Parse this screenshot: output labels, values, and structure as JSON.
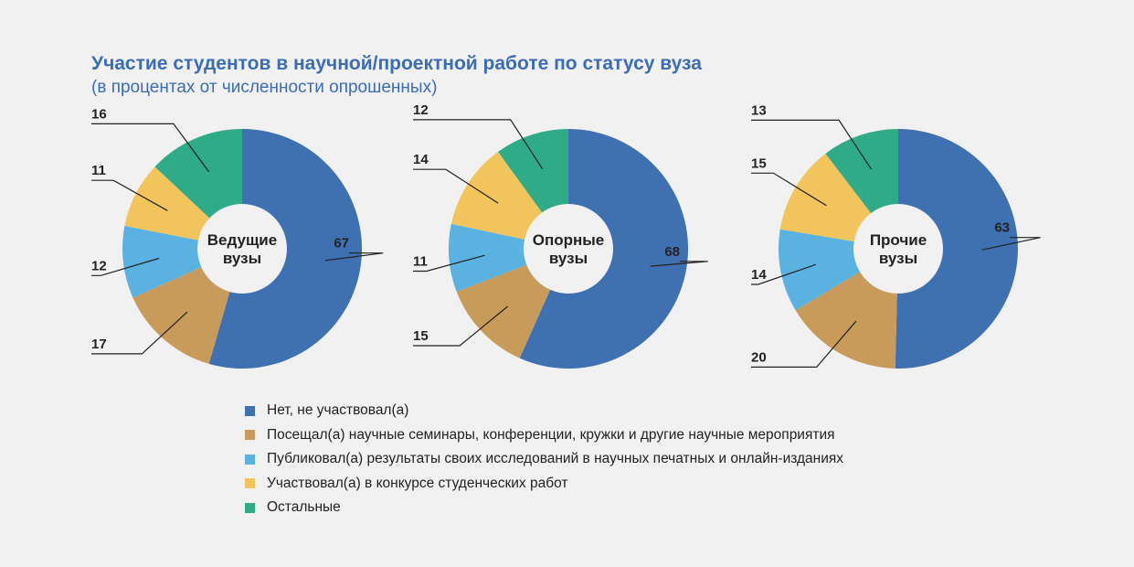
{
  "title": "Участие студентов в научной/проектной работе по статусу вуза",
  "subtitle": "(в процентах от численности опрошенных)",
  "chart_data": {
    "type": "pie",
    "categories": [
      "Нет, не участвовал(а)",
      "Посещал(а) научные семинары, конференции, кружки и другие научные мероприятия",
      "Публиковал(а) результаты своих исследований в научных печатных и онлайн-изданиях",
      "Участвовал(а) в конкурсе студенческих работ",
      "Остальные"
    ],
    "colors": [
      "#3f70b2",
      "#c89b5a",
      "#59b2df",
      "#f2c45c",
      "#30ab87"
    ],
    "charts": [
      {
        "title": "Ведущие вузы",
        "values": [
          67,
          17,
          12,
          11,
          16
        ]
      },
      {
        "title": "Опорные вузы",
        "values": [
          68,
          15,
          11,
          14,
          12
        ]
      },
      {
        "title": "Прочие вузы",
        "values": [
          63,
          20,
          14,
          15,
          13
        ]
      }
    ]
  }
}
